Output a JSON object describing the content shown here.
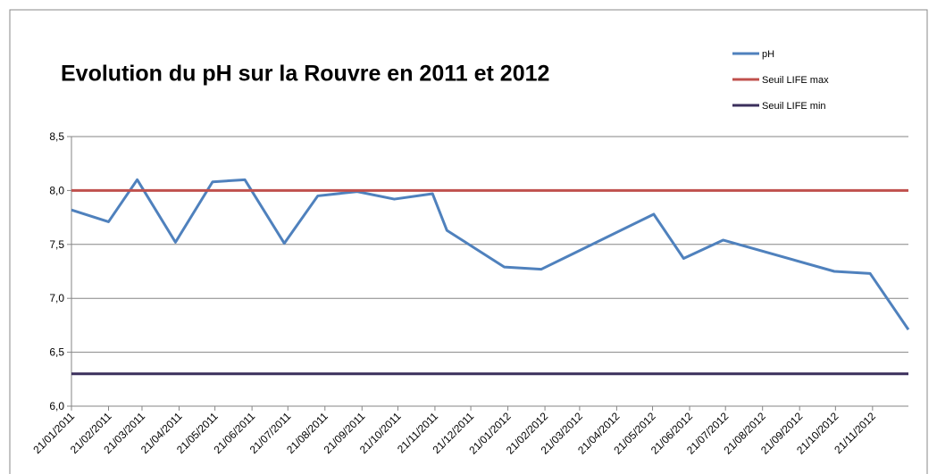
{
  "chart_data": {
    "type": "line",
    "title": "Evolution du pH sur la Rouvre en 2011 et 2012",
    "series": [
      {
        "name": "pH",
        "color": "#4f81bd",
        "x": [
          "21/01/2011",
          "21/02/2011",
          "17/03/2011",
          "18/04/2011",
          "19/05/2011",
          "15/06/2011",
          "18/07/2011",
          "15/08/2011",
          "17/09/2011",
          "18/10/2011",
          "19/11/2011",
          "01/12/2011",
          "18/01/2012",
          "18/02/2012",
          "22/05/2012",
          "16/06/2012",
          "19/07/2012",
          "20/10/2012",
          "19/11/2012",
          "21/12/2012"
        ],
        "values": [
          7.82,
          7.71,
          8.1,
          7.52,
          8.08,
          8.1,
          7.51,
          7.95,
          7.99,
          7.92,
          7.97,
          7.63,
          7.29,
          7.27,
          7.78,
          7.37,
          7.54,
          7.25,
          7.23,
          6.71
        ]
      },
      {
        "name": "Seuil LIFE max",
        "color": "#c0504d",
        "value": 8.0
      },
      {
        "name": "Seuil LIFE min",
        "color": "#3b2f5c",
        "value": 6.3
      }
    ],
    "xlim": [
      "21/01/2011",
      "21/12/2012"
    ],
    "xticks": [
      "21/01/2011",
      "21/02/2011",
      "21/03/2011",
      "21/04/2011",
      "21/05/2011",
      "21/06/2011",
      "21/07/2011",
      "21/08/2011",
      "21/09/2011",
      "21/10/2011",
      "21/11/2011",
      "21/12/2011",
      "21/01/2012",
      "21/02/2012",
      "21/03/2012",
      "21/04/2012",
      "21/05/2012",
      "21/06/2012",
      "21/07/2012",
      "21/08/2012",
      "21/09/2012",
      "21/10/2012",
      "21/11/2012"
    ],
    "ylim": [
      6.0,
      8.5
    ],
    "yticks": [
      {
        "value": 6.0,
        "label": "6,0"
      },
      {
        "value": 6.5,
        "label": "6,5"
      },
      {
        "value": 7.0,
        "label": "7,0"
      },
      {
        "value": 7.5,
        "label": "7,5"
      },
      {
        "value": 8.0,
        "label": "8,0"
      },
      {
        "value": 8.5,
        "label": "8,5"
      }
    ],
    "grid": true,
    "legend": "top-right"
  }
}
